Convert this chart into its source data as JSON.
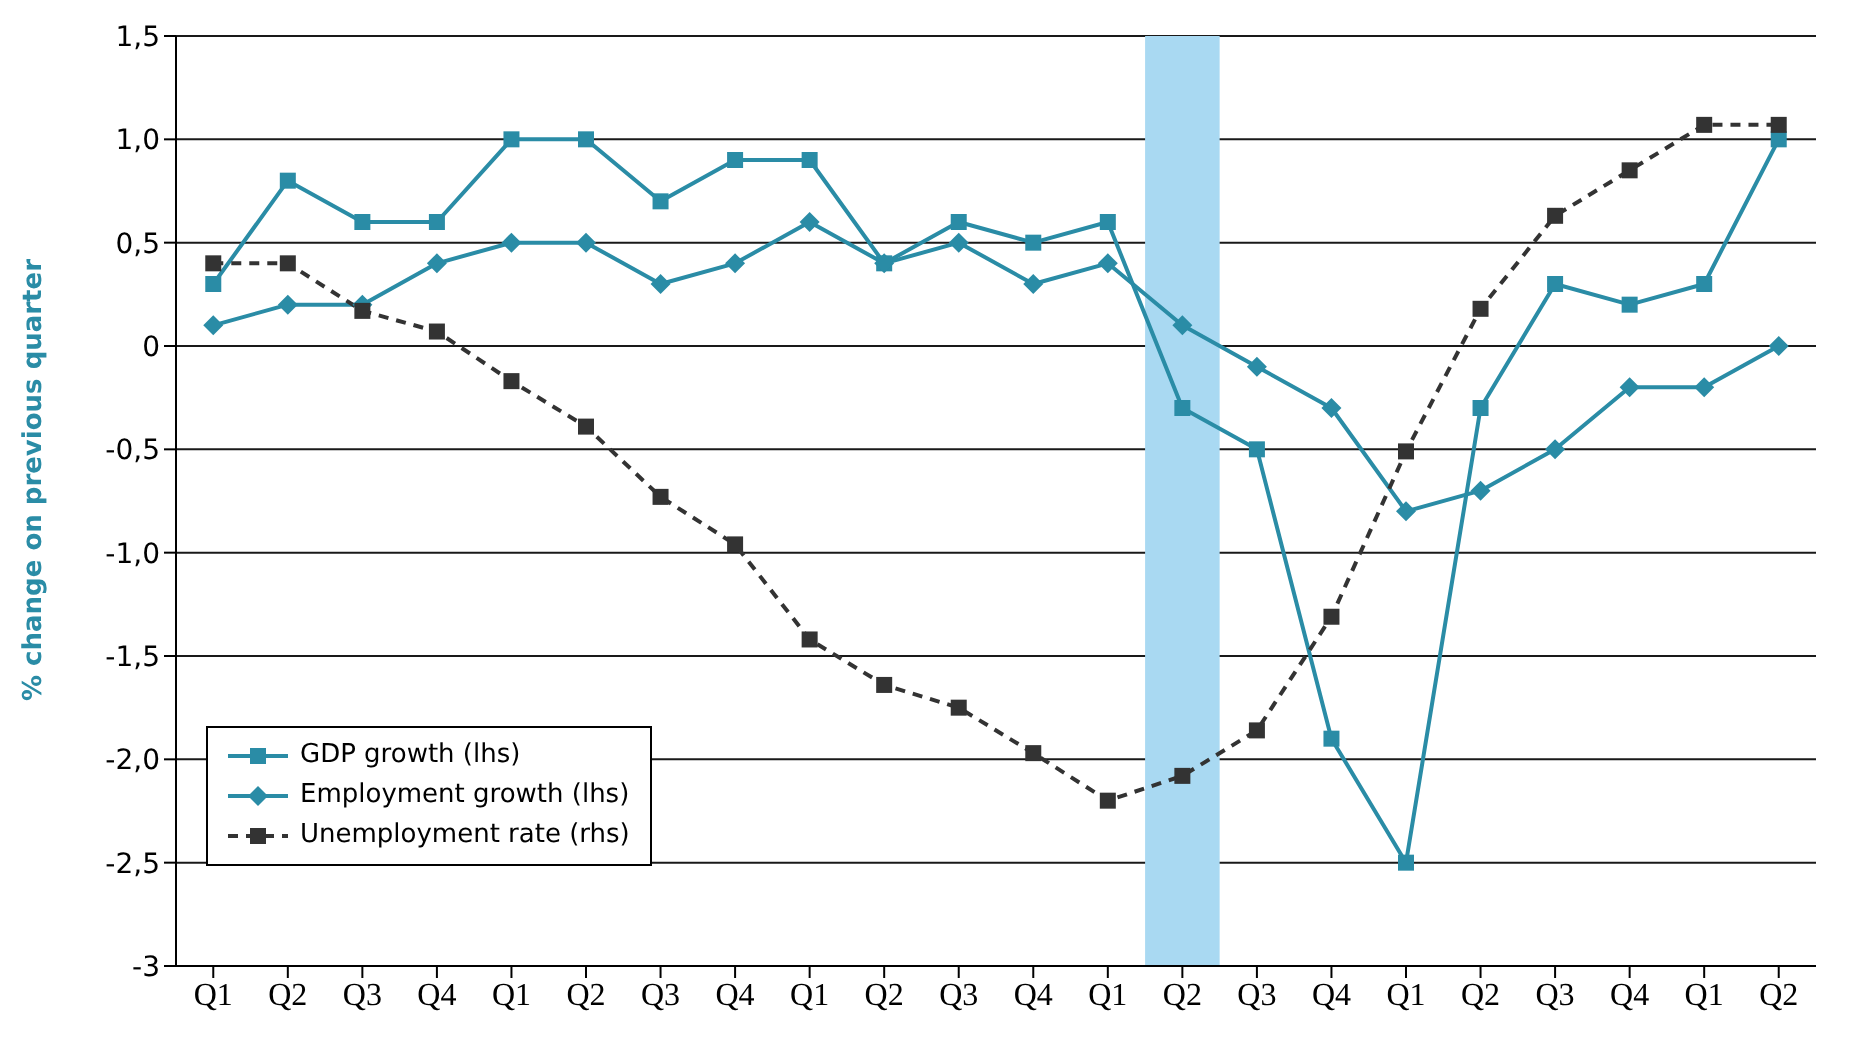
{
  "chart_data": {
    "type": "line",
    "ylabel": "% change on previous quarter",
    "categories": [
      "Q1",
      "Q2",
      "Q3",
      "Q4",
      "Q1",
      "Q2",
      "Q3",
      "Q4",
      "Q1",
      "Q2",
      "Q3",
      "Q4",
      "Q1",
      "Q2",
      "Q3",
      "Q4",
      "Q1",
      "Q2",
      "Q3",
      "Q4",
      "Q1",
      "Q2"
    ],
    "series": [
      {
        "name": "GDP growth (lhs)",
        "color": "#2a8ca6",
        "marker": "square",
        "line_style": "solid",
        "values": [
          0.3,
          0.8,
          0.6,
          0.6,
          1.0,
          1.0,
          0.7,
          0.9,
          0.9,
          0.4,
          0.6,
          0.5,
          0.6,
          -0.3,
          -0.5,
          -1.9,
          -2.5,
          -0.3,
          0.3,
          0.2,
          0.3,
          1.0
        ]
      },
      {
        "name": "Employment growth (lhs)",
        "color": "#2a8ca6",
        "marker": "diamond",
        "line_style": "solid",
        "values": [
          0.1,
          0.2,
          0.2,
          0.4,
          0.5,
          0.5,
          0.3,
          0.4,
          0.6,
          0.4,
          0.5,
          0.3,
          0.4,
          0.1,
          -0.1,
          -0.3,
          -0.8,
          -0.7,
          -0.5,
          -0.2,
          -0.2,
          0.0
        ]
      },
      {
        "name": "Unemployment rate (rhs)",
        "color": "#333333",
        "marker": "square",
        "line_style": "dashed",
        "values": [
          0.4,
          0.4,
          0.17,
          0.07,
          -0.17,
          -0.39,
          -0.73,
          -0.96,
          -1.42,
          -1.64,
          -1.75,
          -1.97,
          -2.2,
          -2.08,
          -1.86,
          -1.31,
          -0.51,
          0.18,
          0.63,
          0.85,
          1.07,
          1.07
        ]
      }
    ],
    "ylim": [
      -3,
      1.5
    ],
    "yticks": [
      {
        "value": -3,
        "label": "-3"
      },
      {
        "value": -2.5,
        "label": "-2,5"
      },
      {
        "value": -2,
        "label": "-2,0"
      },
      {
        "value": -1.5,
        "label": "-1,5"
      },
      {
        "value": -1,
        "label": "-1,0"
      },
      {
        "value": -0.5,
        "label": "-0,5"
      },
      {
        "value": 0,
        "label": "0"
      },
      {
        "value": 0.5,
        "label": "0,5"
      },
      {
        "value": 1,
        "label": "1,0"
      },
      {
        "value": 1.5,
        "label": "1,5"
      }
    ],
    "grid": "y",
    "legend": "bottom left"
  }
}
